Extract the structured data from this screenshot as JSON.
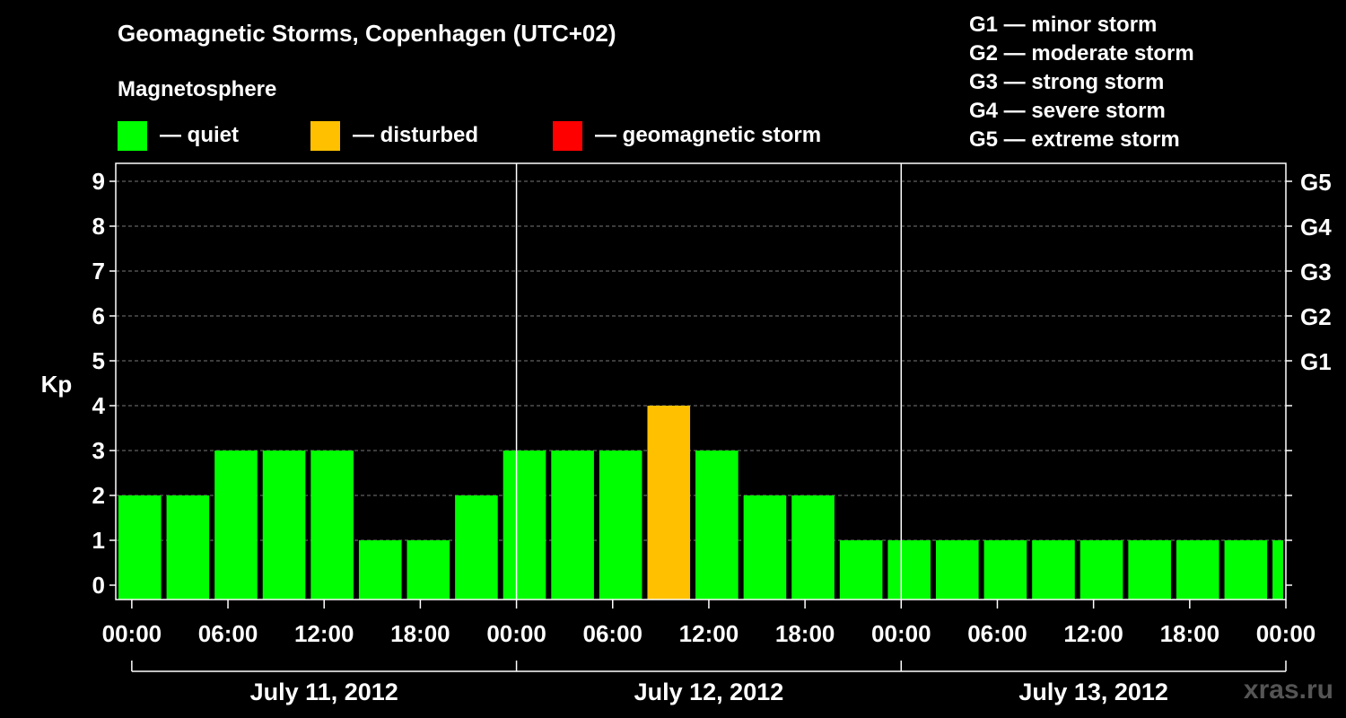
{
  "header": {
    "title": "Geomagnetic Storms, Copenhagen (UTC+02)",
    "subtitle": "Magnetosphere"
  },
  "legend": [
    {
      "label": "— quiet",
      "color": "#00ff00"
    },
    {
      "label": "— disturbed",
      "color": "#ffc000"
    },
    {
      "label": "— geomagnetic storm",
      "color": "#ff0000"
    }
  ],
  "g_scale": [
    "G1 — minor storm",
    "G2 — moderate storm",
    "G3 — strong storm",
    "G4 — severe storm",
    "G5 — extreme storm"
  ],
  "watermark": "xras.ru",
  "chart_data": {
    "type": "bar",
    "title": "Geomagnetic Storms, Copenhagen (UTC+02)",
    "ylabel": "Kp",
    "ylim": [
      0,
      9
    ],
    "yticks": [
      0,
      1,
      2,
      3,
      4,
      5,
      6,
      7,
      8,
      9
    ],
    "y2_ticks": [
      {
        "kp": 5,
        "label": "G1"
      },
      {
        "kp": 6,
        "label": "G2"
      },
      {
        "kp": 7,
        "label": "G3"
      },
      {
        "kp": 8,
        "label": "G4"
      },
      {
        "kp": 9,
        "label": "G5"
      }
    ],
    "x_range_hours": [
      -1,
      72
    ],
    "xtick_hours": [
      0,
      6,
      12,
      18,
      24,
      30,
      36,
      42,
      48,
      54,
      60,
      66,
      72
    ],
    "xtick_labels": [
      "00:00",
      "06:00",
      "12:00",
      "18:00",
      "00:00",
      "06:00",
      "12:00",
      "18:00",
      "00:00",
      "06:00",
      "12:00",
      "18:00",
      "00:00"
    ],
    "day_dividers_hours": [
      24,
      48
    ],
    "days": [
      {
        "label": "July 11, 2012",
        "start": 0,
        "end": 24
      },
      {
        "label": "July 12, 2012",
        "start": 24,
        "end": 48
      },
      {
        "label": "July 13, 2012",
        "start": 48,
        "end": 72
      }
    ],
    "bar_width_hours": 3,
    "bar_start_hours": [
      -1,
      2,
      5,
      8,
      11,
      14,
      17,
      20,
      23,
      26,
      29,
      32,
      35,
      38,
      41,
      44,
      47,
      50,
      53,
      56,
      59,
      62,
      65,
      68,
      71
    ],
    "values": [
      2,
      2,
      3,
      3,
      3,
      1,
      1,
      2,
      3,
      3,
      3,
      4,
      3,
      2,
      2,
      1,
      1,
      1,
      1,
      1,
      1,
      1,
      1,
      1,
      1
    ],
    "colors": {
      "quiet": "#00ff00",
      "disturbed": "#ffc000",
      "storm": "#ff0000"
    },
    "grid": true
  }
}
